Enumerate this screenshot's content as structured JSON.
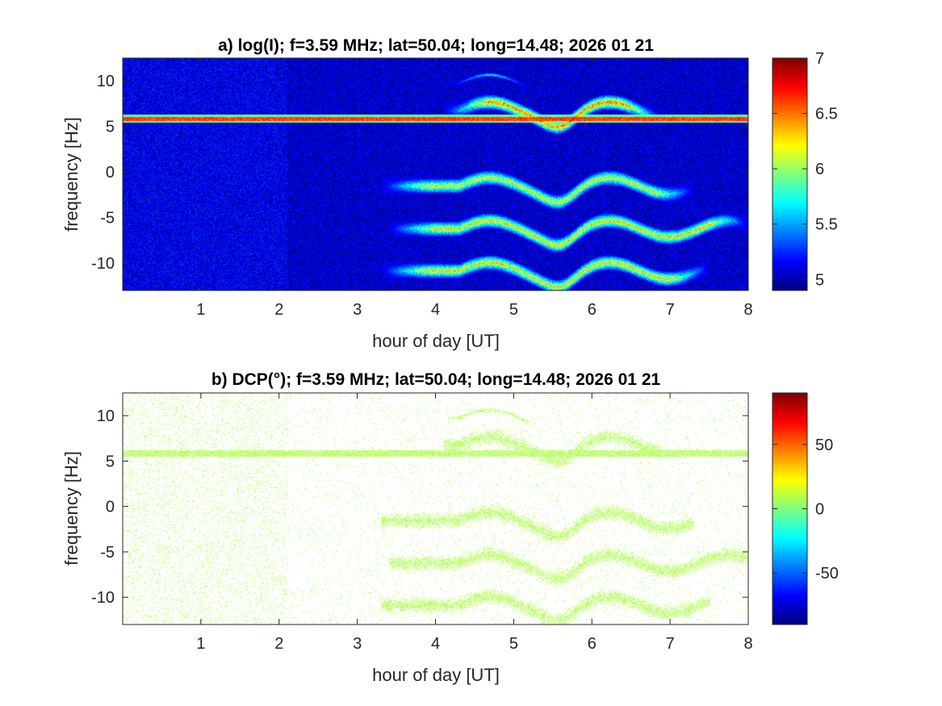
{
  "colors": {
    "background_intensity": "#0b2aa8",
    "background_dcp": "#ffffff",
    "dcp_signal": "#8ee88e",
    "axis": "#262626"
  },
  "colormap": "jet",
  "chart_data": [
    {
      "type": "heatmap",
      "title": "a) log(I); f=3.59 MHz;  lat=50.04; long=14.48; 2026 01 21",
      "xlabel": "hour of day [UT]",
      "ylabel": "frequency [Hz]",
      "xlim": [
        0,
        8
      ],
      "ylim": [
        -13,
        12.5
      ],
      "xticks": [
        1,
        2,
        3,
        4,
        5,
        6,
        7,
        8
      ],
      "yticks": [
        10,
        5,
        0,
        -5,
        -10
      ],
      "colorbar": {
        "min": 4.9,
        "max": 7.0,
        "ticks": [
          7,
          6.5,
          6,
          5.5,
          5
        ]
      },
      "background_value": 5.05,
      "carrier": {
        "frequency_hz": 5.9,
        "value": 6.6
      },
      "traces": [
        {
          "label": "",
          "offset_hz": 9.8,
          "x_start": 4.15,
          "x_end": 5.2,
          "peak_value": 6.0
        },
        {
          "label": "",
          "offset_hz": 6.8,
          "x_start": 4.1,
          "x_end": 6.9,
          "peak_value": 6.9
        },
        {
          "label": "",
          "offset_hz": -1.5,
          "x_start": 3.3,
          "x_end": 7.3,
          "peak_value": 6.5
        },
        {
          "label": "",
          "offset_hz": -6.2,
          "x_start": 3.4,
          "x_end": 8.0,
          "peak_value": 6.6
        },
        {
          "label": "",
          "offset_hz": -10.8,
          "x_start": 3.3,
          "x_end": 7.5,
          "peak_value": 6.6
        }
      ]
    },
    {
      "type": "heatmap",
      "title": "b) DCP(°); f=3.59 MHz;  lat=50.04; long=14.48; 2026 01 21",
      "xlabel": "hour of day [UT]",
      "ylabel": "frequency [Hz]",
      "xlim": [
        0,
        8
      ],
      "ylim": [
        -13,
        12.5
      ],
      "xticks": [
        1,
        2,
        3,
        4,
        5,
        6,
        7,
        8
      ],
      "yticks": [
        10,
        5,
        0,
        -5,
        -10
      ],
      "colorbar": {
        "min": -90,
        "max": 90,
        "ticks": [
          50,
          0,
          -50
        ]
      },
      "signal_value": 10,
      "carrier": {
        "frequency_hz": 5.9,
        "value": 10
      }
    }
  ]
}
